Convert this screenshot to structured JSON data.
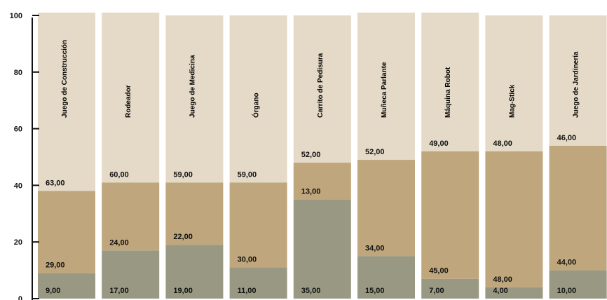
{
  "chart_data": {
    "type": "bar",
    "stacked": true,
    "categories": [
      "Juego de Construcción",
      "Rodeador",
      "Juego de Medicina",
      "Órgano",
      "Carrito de Pedisura",
      "Muñeca Parlante",
      "Máquina Robot",
      "Mag-Stick",
      "Juego de Jardinería"
    ],
    "series": [
      {
        "values": [
          9,
          17,
          19,
          11,
          35,
          15,
          7,
          4,
          10
        ],
        "labels": [
          "9,00",
          "17,00",
          "19,00",
          "11,00",
          "35,00",
          "15,00",
          "7,00",
          "4,00",
          "10,00"
        ],
        "color": "#999983"
      },
      {
        "values": [
          29,
          24,
          22,
          30,
          13,
          34,
          45,
          48,
          44
        ],
        "labels": [
          "29,00",
          "24,00",
          "22,00",
          "30,00",
          "13,00",
          "34,00",
          "45,00",
          "48,00",
          "44,00"
        ],
        "color": "#bfa67c"
      },
      {
        "values": [
          63,
          60,
          59,
          59,
          52,
          52,
          49,
          48,
          46
        ],
        "labels": [
          "63,00",
          "60,00",
          "59,00",
          "59,00",
          "52,00",
          "52,00",
          "49,00",
          "48,00",
          "46,00"
        ],
        "color": "#e4dac7"
      }
    ],
    "ylim": [
      0,
      100
    ],
    "yticks": [
      "0",
      "20",
      "40",
      "60",
      "80",
      "100"
    ],
    "grid": false,
    "legend": "none"
  }
}
